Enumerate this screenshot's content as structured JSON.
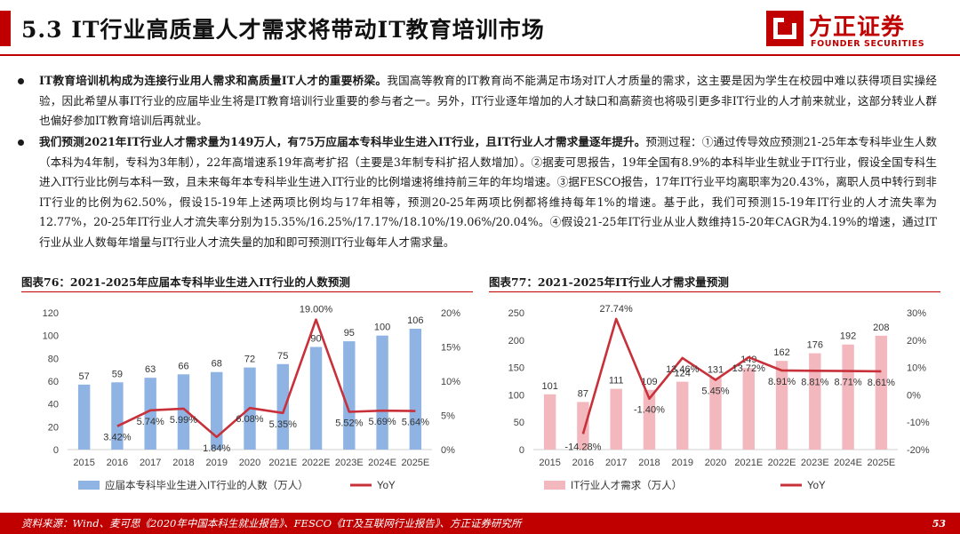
{
  "header": {
    "title": "5.3 IT行业高质量人才需求将带动IT教育培训市场",
    "logo_cn": "方正证券",
    "logo_en": "FOUNDER SECURITIES"
  },
  "para1": {
    "bold": "IT教育培训机构成为连接行业用人需求和高质量IT人才的重要桥梁。",
    "text": "我国高等教育的IT教育尚不能满足市场对IT人才质量的需求，这主要是因为学生在校园中难以获得项目实操经验，因此希望从事IT行业的应届毕业生将是IT教育培训行业重要的参与者之一。另外，IT行业逐年增加的人才缺口和高薪资也将吸引更多非IT行业的人才前来就业，这部分转业人群也偏好参加IT教育培训后再就业。"
  },
  "para2": {
    "bold": "我们预测2021年IT行业人才需求量为149万人，有75万应届本专科毕业生进入IT行业，且IT行业人才需求量逐年提升。",
    "text": "预测过程：①通过传导效应预测21-25年本专科毕业生人数（本科为4年制，专科为3年制），22年高增速系19年高考扩招（主要是3年制专科扩招人数增加）。②据麦可思报告，19年全国有8.9%的本科毕业生就业于IT行业，假设全国专科生进入IT行业比例与本科一致，且未来每年本专科毕业生进入IT行业的比例增速将维持前三年的年均增速。③据FESCO报告，17年IT行业平均离职率为20.43%，离职人员中转行到非IT行业的比例为62.50%，假设15-19年上述两项比例均与17年相等，预测20-25年两项比例都将维持每年1%的增速。基于此，我们可预测15-19年IT行业的人才流失率为12.77%，20-25年IT行业人才流失率分别为15.35%/16.25%/17.17%/18.10%/19.06%/20.04%。④假设21-25年IT行业从业人数维持15-20年CAGR为4.19%的增速，通过IT行业从业人数每年增量与IT行业人才流失量的加和即可预测IT行业每年人才需求量。"
  },
  "figures": {
    "fig76_title": "图表76：2021-2025年应届本专科毕业生进入IT行业的人数预测",
    "fig77_title": "图表77：2021-2025年IT行业人才需求量预测"
  },
  "chart_data": [
    {
      "type": "bar",
      "categories": [
        "2015",
        "2016",
        "2017",
        "2018",
        "2019",
        "2020",
        "2021E",
        "2022E",
        "2023E",
        "2024E",
        "2025E"
      ],
      "series": [
        {
          "name": "应届本专科毕业生进入IT行业的人数（万人）",
          "kind": "bar",
          "axis": "left",
          "values": [
            57,
            59,
            63,
            66,
            68,
            72,
            75,
            90,
            95,
            100,
            106
          ],
          "labels": [
            "57",
            "59",
            "63",
            "66",
            "68",
            "72",
            "75",
            "90",
            "95",
            "100",
            "106"
          ],
          "color": "#8fb4e3"
        },
        {
          "name": "YoY",
          "kind": "line",
          "axis": "right",
          "values": [
            null,
            3.42,
            5.74,
            5.99,
            1.84,
            6.08,
            5.35,
            19.0,
            5.52,
            5.69,
            5.64
          ],
          "labels": [
            "",
            "3.42%",
            "5.74%",
            "5.99%",
            "1.84%",
            "6.08%",
            "5.35%",
            "19.00%",
            "5.52%",
            "5.69%",
            "5.64%"
          ],
          "color": "#c8303a"
        }
      ],
      "yleft": {
        "min": 0,
        "max": 120,
        "ticks": [
          "0",
          "20",
          "40",
          "60",
          "80",
          "100",
          "120"
        ]
      },
      "yright": {
        "min": 0,
        "max": 20,
        "ticks": [
          "0%",
          "5%",
          "10%",
          "15%",
          "20%"
        ]
      },
      "legend": "bottom"
    },
    {
      "type": "bar",
      "categories": [
        "2015",
        "2016",
        "2017",
        "2018",
        "2019",
        "2020",
        "2021E",
        "2022E",
        "2023E",
        "2024E",
        "2025E"
      ],
      "series": [
        {
          "name": "IT行业人才需求（万人）",
          "kind": "bar",
          "axis": "left",
          "values": [
            101,
            87,
            111,
            109,
            124,
            131,
            149,
            162,
            176,
            192,
            208
          ],
          "labels": [
            "101",
            "87",
            "111",
            "109",
            "124",
            "131",
            "149",
            "162",
            "176",
            "192",
            "208"
          ],
          "color": "#f2b8bd"
        },
        {
          "name": "YoY",
          "kind": "line",
          "axis": "right",
          "values": [
            null,
            -14.28,
            27.74,
            -1.4,
            13.46,
            5.45,
            13.72,
            8.91,
            8.81,
            8.71,
            8.61
          ],
          "labels": [
            "",
            "-14.28%",
            "27.74%",
            "-1.40%",
            "13.46%",
            "5.45%",
            "13.72%",
            "8.91%",
            "8.81%",
            "8.71%",
            "8.61%"
          ],
          "color": "#c8303a"
        }
      ],
      "yleft": {
        "min": 0,
        "max": 250,
        "ticks": [
          "0",
          "50",
          "100",
          "150",
          "200",
          "250"
        ]
      },
      "yright": {
        "min": -20,
        "max": 30,
        "ticks": [
          "-20%",
          "-10%",
          "0%",
          "10%",
          "20%",
          "30%"
        ]
      },
      "legend": "bottom"
    }
  ],
  "footer": {
    "source": "资料来源：Wind、麦可思《2020年中国本科生就业报告》、FESCO《IT及互联网行业报告》、方正证券研究所",
    "page": "53"
  }
}
